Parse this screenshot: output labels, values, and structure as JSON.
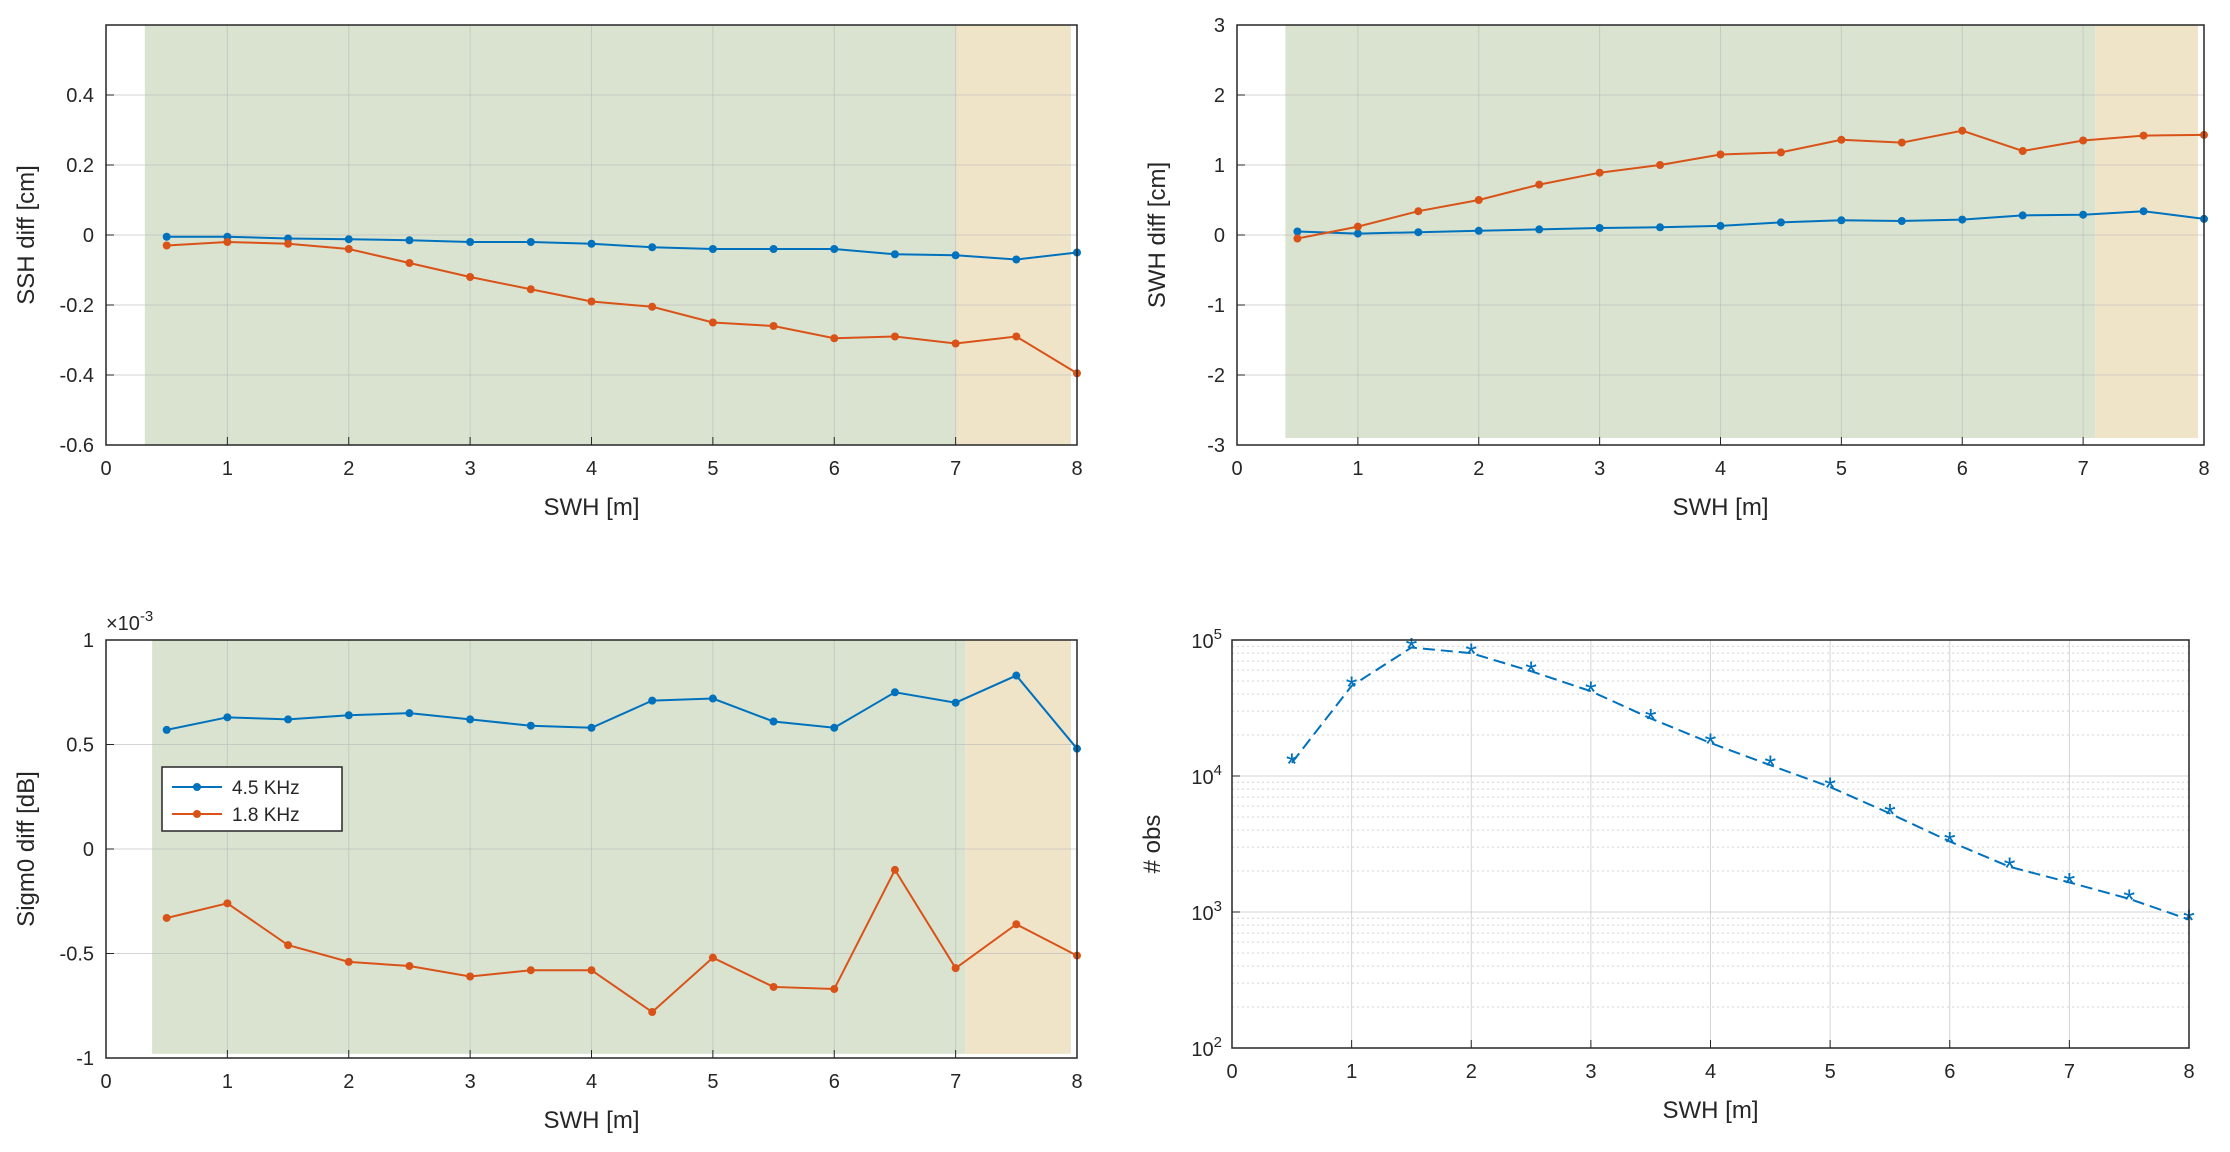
{
  "colors": {
    "series_blue": "#0072BD",
    "series_orange": "#D95319",
    "zone_valid": "#D9E3D0",
    "zone_extreme": "#F0E4C8",
    "grid": "#b9b9b9",
    "axis": "#262626"
  },
  "chart_data": [
    {
      "type": "line",
      "name": "ssh-diff",
      "xlabel": "SWH [m]",
      "ylabel": "SSH diff [cm]",
      "xlim": [
        0,
        8
      ],
      "ylim": [
        -0.6,
        0.6
      ],
      "xticks": [
        0,
        1,
        2,
        3,
        4,
        5,
        6,
        7,
        8
      ],
      "yticks": [
        -0.6,
        -0.4,
        -0.2,
        0,
        0.2,
        0.4
      ],
      "ytick_labels": [
        "-0.6",
        "-0.4",
        "-0.2",
        "0",
        "0.2",
        "0.4"
      ],
      "shaded_regions": [
        {
          "x0": 0.32,
          "x1": 7.0,
          "y0": -0.6,
          "y1": 0.6,
          "zone": "valid"
        },
        {
          "x0": 7.0,
          "x1": 7.95,
          "y0": -0.6,
          "y1": 0.6,
          "zone": "extreme"
        }
      ],
      "x": [
        0.5,
        1,
        1.5,
        2,
        2.5,
        3,
        3.5,
        4,
        4.5,
        5,
        5.5,
        6,
        6.5,
        7,
        7.5,
        8
      ],
      "series": [
        {
          "name": "4.5 KHz",
          "color": "#0072BD",
          "values": [
            -0.005,
            -0.005,
            -0.01,
            -0.012,
            -0.015,
            -0.02,
            -0.02,
            -0.025,
            -0.035,
            -0.04,
            -0.04,
            -0.04,
            -0.055,
            -0.058,
            -0.07,
            -0.05
          ]
        },
        {
          "name": "1.8 KHz",
          "color": "#D95319",
          "values": [
            -0.03,
            -0.02,
            -0.025,
            -0.04,
            -0.08,
            -0.12,
            -0.155,
            -0.19,
            -0.205,
            -0.25,
            -0.26,
            -0.295,
            -0.29,
            -0.31,
            -0.29,
            -0.395
          ]
        }
      ]
    },
    {
      "type": "line",
      "name": "swh-diff",
      "xlabel": "SWH [m]",
      "ylabel": "SWH diff [cm]",
      "xlim": [
        0,
        8
      ],
      "ylim": [
        -3,
        3
      ],
      "xticks": [
        0,
        1,
        2,
        3,
        4,
        5,
        6,
        7,
        8
      ],
      "yticks": [
        -3,
        -2,
        -1,
        0,
        1,
        2,
        3
      ],
      "ytick_labels": [
        "-3",
        "-2",
        "-1",
        "0",
        "1",
        "2",
        "3"
      ],
      "shaded_regions": [
        {
          "x0": 0.4,
          "x1": 7.1,
          "y0": -2.9,
          "y1": 3,
          "zone": "valid"
        },
        {
          "x0": 7.1,
          "x1": 7.95,
          "y0": -2.9,
          "y1": 3,
          "zone": "extreme"
        }
      ],
      "x": [
        0.5,
        1,
        1.5,
        2,
        2.5,
        3,
        3.5,
        4,
        4.5,
        5,
        5.5,
        6,
        6.5,
        7,
        7.5,
        8
      ],
      "series": [
        {
          "name": "4.5 KHz",
          "color": "#0072BD",
          "values": [
            0.05,
            0.02,
            0.04,
            0.06,
            0.08,
            0.1,
            0.11,
            0.13,
            0.18,
            0.21,
            0.2,
            0.22,
            0.28,
            0.29,
            0.34,
            0.23
          ]
        },
        {
          "name": "1.8 KHz",
          "color": "#D95319",
          "values": [
            -0.05,
            0.12,
            0.34,
            0.5,
            0.72,
            0.89,
            1.0,
            1.15,
            1.18,
            1.36,
            1.32,
            1.49,
            1.2,
            1.35,
            1.42,
            1.43
          ]
        }
      ]
    },
    {
      "type": "line",
      "name": "sigma0-diff",
      "xlabel": "SWH [m]",
      "ylabel": "Sigm0 diff [dB]",
      "y_exponent_base": "×10",
      "y_exponent": "-3",
      "xlim": [
        0,
        8
      ],
      "ylim": [
        -1,
        1
      ],
      "xticks": [
        0,
        1,
        2,
        3,
        4,
        5,
        6,
        7,
        8
      ],
      "yticks": [
        -1,
        -0.5,
        0,
        0.5,
        1
      ],
      "ytick_labels": [
        "-1",
        "-0.5",
        "0",
        "0.5",
        "1"
      ],
      "shaded_regions": [
        {
          "x0": 0.38,
          "x1": 7.08,
          "y0": -0.98,
          "y1": 1,
          "zone": "valid"
        },
        {
          "x0": 7.08,
          "x1": 7.95,
          "y0": -0.98,
          "y1": 1,
          "zone": "extreme"
        }
      ],
      "legend": {
        "placement": "middle-left",
        "entries": [
          "4.5 KHz",
          "1.8 KHz"
        ]
      },
      "x": [
        0.5,
        1,
        1.5,
        2,
        2.5,
        3,
        3.5,
        4,
        4.5,
        5,
        5.5,
        6,
        6.5,
        7,
        7.5,
        8
      ],
      "series": [
        {
          "name": "4.5 KHz",
          "color": "#0072BD",
          "values": [
            0.57,
            0.63,
            0.62,
            0.64,
            0.65,
            0.62,
            0.59,
            0.58,
            0.71,
            0.72,
            0.61,
            0.58,
            0.75,
            0.7,
            0.83,
            0.48
          ]
        },
        {
          "name": "1.8 KHz",
          "color": "#D95319",
          "values": [
            -0.33,
            -0.26,
            -0.46,
            -0.54,
            -0.56,
            -0.61,
            -0.58,
            -0.58,
            -0.78,
            -0.52,
            -0.66,
            -0.67,
            -0.1,
            -0.57,
            -0.36,
            -0.51
          ]
        }
      ]
    },
    {
      "type": "line",
      "name": "obs-count",
      "scale": "log",
      "xlabel": "SWH [m]",
      "ylabel": "# obs",
      "xlim": [
        0,
        8
      ],
      "ylim": [
        100,
        100000
      ],
      "xticks": [
        0,
        1,
        2,
        3,
        4,
        5,
        6,
        7,
        8
      ],
      "yticks": [
        100,
        1000,
        10000,
        100000
      ],
      "ytick_labels": [
        {
          "base": "10",
          "exp": "2"
        },
        {
          "base": "10",
          "exp": "3"
        },
        {
          "base": "10",
          "exp": "4"
        },
        {
          "base": "10",
          "exp": "5"
        }
      ],
      "x": [
        0.5,
        1,
        1.5,
        2,
        2.5,
        3,
        3.5,
        4,
        4.5,
        5,
        5.5,
        6,
        6.5,
        7,
        7.5,
        8
      ],
      "series": [
        {
          "name": "obs",
          "color": "#0072BD",
          "values": [
            12500,
            46000,
            88000,
            80000,
            59000,
            42000,
            26500,
            17500,
            12000,
            8300,
            5300,
            3300,
            2150,
            1650,
            1250,
            880
          ]
        }
      ]
    }
  ]
}
